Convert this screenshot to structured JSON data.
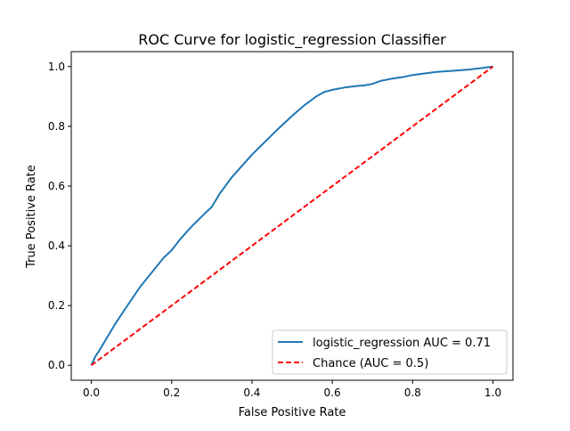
{
  "chart_data": {
    "type": "line",
    "title": "ROC Curve for logistic_regression Classifier",
    "xlabel": "False Positive Rate",
    "ylabel": "True Positive Rate",
    "xlim": [
      -0.05,
      1.05
    ],
    "ylim": [
      -0.05,
      1.05
    ],
    "x_ticks": [
      {
        "value": 0.0,
        "label": "0.0"
      },
      {
        "value": 0.2,
        "label": "0.2"
      },
      {
        "value": 0.4,
        "label": "0.4"
      },
      {
        "value": 0.6,
        "label": "0.6"
      },
      {
        "value": 0.8,
        "label": "0.8"
      },
      {
        "value": 1.0,
        "label": "1.0"
      }
    ],
    "y_ticks": [
      {
        "value": 0.0,
        "label": "0.0"
      },
      {
        "value": 0.2,
        "label": "0.2"
      },
      {
        "value": 0.4,
        "label": "0.4"
      },
      {
        "value": 0.6,
        "label": "0.6"
      },
      {
        "value": 0.8,
        "label": "0.8"
      },
      {
        "value": 1.0,
        "label": "1.0"
      }
    ],
    "grid": false,
    "legend_position": "lower-right",
    "series": [
      {
        "name": "logistic_regression AUC = 0.71",
        "color": "#1f77b4",
        "dash": "solid",
        "x": [
          0.0,
          0.01,
          0.02,
          0.04,
          0.06,
          0.08,
          0.1,
          0.12,
          0.15,
          0.18,
          0.2,
          0.22,
          0.25,
          0.28,
          0.3,
          0.32,
          0.35,
          0.38,
          0.4,
          0.43,
          0.46,
          0.5,
          0.53,
          0.56,
          0.58,
          0.6,
          0.63,
          0.66,
          0.68,
          0.7,
          0.72,
          0.75,
          0.78,
          0.8,
          0.83,
          0.86,
          0.9,
          0.94,
          0.97,
          1.0
        ],
        "y": [
          0.0,
          0.03,
          0.05,
          0.095,
          0.14,
          0.18,
          0.22,
          0.26,
          0.31,
          0.36,
          0.385,
          0.42,
          0.465,
          0.505,
          0.53,
          0.575,
          0.63,
          0.675,
          0.705,
          0.745,
          0.785,
          0.835,
          0.87,
          0.9,
          0.915,
          0.922,
          0.93,
          0.935,
          0.937,
          0.942,
          0.952,
          0.96,
          0.966,
          0.972,
          0.977,
          0.982,
          0.986,
          0.99,
          0.995,
          1.0
        ]
      },
      {
        "name": "Chance (AUC = 0.5)",
        "color": "#ff0000",
        "dash": "dashed",
        "x": [
          0.0,
          1.0
        ],
        "y": [
          0.0,
          1.0
        ]
      }
    ]
  }
}
